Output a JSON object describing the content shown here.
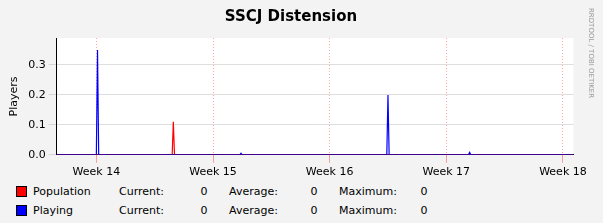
{
  "chart_data": {
    "type": "line",
    "title": "SSCJ Distension",
    "y_label": "Players",
    "watermark": "RRDTOOL / TOBI OETIKER",
    "x": [
      13.66,
      14.0,
      14.01,
      14.02,
      14.65,
      14.66,
      14.67,
      15.23,
      15.24,
      15.25,
      16.49,
      16.5,
      16.51,
      17.19,
      17.2,
      17.21,
      18.09
    ],
    "series": [
      {
        "name": "Population",
        "color": "#ff0000",
        "values": [
          0,
          0,
          0,
          0,
          0,
          0.11,
          0,
          0,
          0,
          0,
          0,
          0,
          0,
          0,
          0,
          0,
          0
        ],
        "stats": [
          0,
          0,
          0
        ]
      },
      {
        "name": "Playing",
        "color": "#0000ff",
        "values": [
          0,
          0,
          0.35,
          0,
          0,
          0,
          0,
          0,
          0.005,
          0,
          0,
          0.2,
          0,
          0,
          0.008,
          0,
          0
        ],
        "stats": [
          0,
          0,
          0
        ]
      }
    ],
    "stat_labels": [
      "Current:",
      "Average:",
      "Maximum:"
    ],
    "xlim": [
      13.66,
      18.09
    ],
    "xticks": [
      {
        "value": 14,
        "label": "Week 14"
      },
      {
        "value": 15,
        "label": "Week 15"
      },
      {
        "value": 16,
        "label": "Week 16"
      },
      {
        "value": 17,
        "label": "Week 17"
      },
      {
        "value": 18,
        "label": "Week 18"
      }
    ],
    "ylim": [
      0,
      0.39
    ],
    "yticks": [
      {
        "value": 0,
        "label": "0.0"
      },
      0.1,
      0.2,
      0.3
    ],
    "grid": true
  }
}
